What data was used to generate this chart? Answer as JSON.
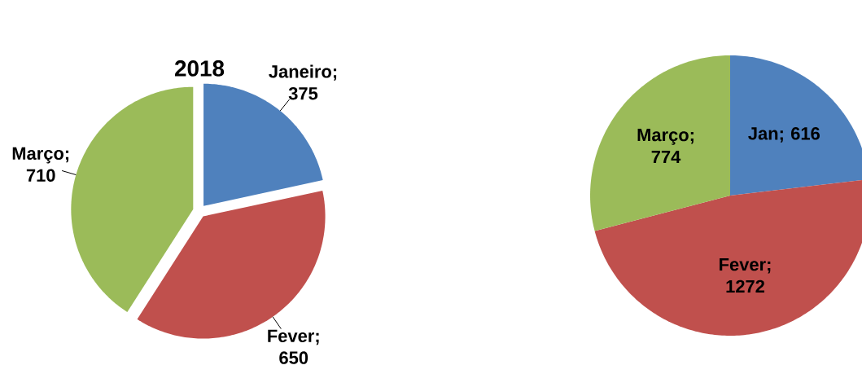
{
  "chart_data": [
    {
      "type": "pie",
      "title": "2018",
      "categories": [
        "Janeiro",
        "Fever",
        "Março"
      ],
      "values": [
        375,
        650,
        710
      ],
      "colors": [
        "#4f81bd",
        "#c0504d",
        "#9bbb59"
      ],
      "value_labels": [
        "; 375",
        "; 650",
        "; 710"
      ]
    },
    {
      "type": "pie",
      "categories": [
        "Jan",
        "Fever",
        "Março"
      ],
      "values": [
        616,
        1272,
        774
      ],
      "colors": [
        "#4f81bd",
        "#c0504d",
        "#9bbb59"
      ],
      "value_labels": [
        "; 616",
        "; 1272",
        "; 774"
      ]
    }
  ]
}
